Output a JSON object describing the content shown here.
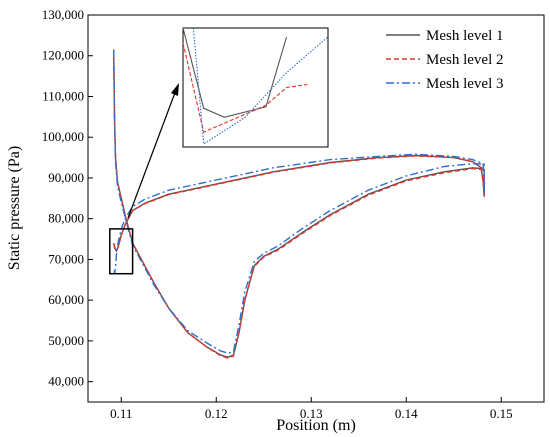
{
  "chart_data": {
    "type": "line",
    "xlabel": "Position (m)",
    "ylabel": "Static pressure (Pa)",
    "xlim": [
      0.1065,
      0.1545
    ],
    "ylim": [
      35000,
      130000
    ],
    "x_ticks": [
      0.11,
      0.12,
      0.13,
      0.14,
      0.15
    ],
    "x_tick_labels": [
      "0.11",
      "0.12",
      "0.13",
      "0.14",
      "0.15"
    ],
    "y_ticks": [
      40000,
      50000,
      60000,
      70000,
      80000,
      90000,
      100000,
      110000,
      120000,
      130000
    ],
    "y_tick_labels": [
      "40,000",
      "50,000",
      "60,000",
      "70,000",
      "80,000",
      "90,000",
      "100,000",
      "110,000",
      "120,000",
      "130,000"
    ],
    "legend_position": "top-right",
    "series": [
      {
        "name": "Mesh level 1",
        "color": "#555555",
        "dash": "solid",
        "points": [
          [
            0.1092,
            121500
          ],
          [
            0.1093,
            104000
          ],
          [
            0.1094,
            95000
          ],
          [
            0.1096,
            89000
          ],
          [
            0.11,
            85000
          ],
          [
            0.1105,
            80000
          ],
          [
            0.1112,
            74000
          ],
          [
            0.112,
            70500
          ],
          [
            0.1135,
            64000
          ],
          [
            0.115,
            58000
          ],
          [
            0.117,
            52000
          ],
          [
            0.119,
            48500
          ],
          [
            0.1205,
            46500
          ],
          [
            0.1212,
            46000
          ],
          [
            0.1218,
            46500
          ],
          [
            0.1224,
            52000
          ],
          [
            0.123,
            60000
          ],
          [
            0.124,
            68500
          ],
          [
            0.125,
            70800
          ],
          [
            0.1265,
            72500
          ],
          [
            0.129,
            76500
          ],
          [
            0.132,
            81000
          ],
          [
            0.136,
            86000
          ],
          [
            0.14,
            89500
          ],
          [
            0.144,
            91500
          ],
          [
            0.147,
            92500
          ],
          [
            0.1479,
            92300
          ],
          [
            0.1481,
            89000
          ],
          [
            0.1482,
            85500
          ],
          [
            0.1482,
            92000
          ],
          [
            0.147,
            94000
          ],
          [
            0.145,
            95000
          ],
          [
            0.141,
            95500
          ],
          [
            0.137,
            95000
          ],
          [
            0.132,
            93800
          ],
          [
            0.126,
            91500
          ],
          [
            0.12,
            88500
          ],
          [
            0.115,
            86000
          ],
          [
            0.1125,
            83800
          ],
          [
            0.1112,
            82000
          ],
          [
            0.1104,
            78500
          ],
          [
            0.11,
            76000
          ],
          [
            0.1097,
            73300
          ],
          [
            0.1095,
            72000
          ],
          [
            0.1093,
            72800
          ],
          [
            0.1092,
            74000
          ]
        ]
      },
      {
        "name": "Mesh level 2",
        "color": "#e8312a",
        "dash": "5,3",
        "points": [
          [
            0.1092,
            121500
          ],
          [
            0.1093,
            104000
          ],
          [
            0.1094,
            95000
          ],
          [
            0.1096,
            89000
          ],
          [
            0.11,
            85000
          ],
          [
            0.1105,
            80000
          ],
          [
            0.1112,
            74000
          ],
          [
            0.112,
            70500
          ],
          [
            0.1135,
            64000
          ],
          [
            0.115,
            58000
          ],
          [
            0.117,
            52000
          ],
          [
            0.119,
            48500
          ],
          [
            0.1205,
            46300
          ],
          [
            0.1212,
            45800
          ],
          [
            0.1218,
            46300
          ],
          [
            0.1224,
            52000
          ],
          [
            0.123,
            60000
          ],
          [
            0.124,
            68300
          ],
          [
            0.125,
            70600
          ],
          [
            0.1265,
            72300
          ],
          [
            0.129,
            76300
          ],
          [
            0.132,
            80800
          ],
          [
            0.136,
            85800
          ],
          [
            0.14,
            89300
          ],
          [
            0.144,
            91300
          ],
          [
            0.147,
            92300
          ],
          [
            0.1479,
            92100
          ],
          [
            0.1481,
            89000
          ],
          [
            0.1482,
            85500
          ],
          [
            0.1482,
            92000
          ],
          [
            0.147,
            94000
          ],
          [
            0.145,
            95000
          ],
          [
            0.141,
            95400
          ],
          [
            0.137,
            94900
          ],
          [
            0.132,
            93700
          ],
          [
            0.126,
            91400
          ],
          [
            0.12,
            88400
          ],
          [
            0.115,
            85900
          ],
          [
            0.1125,
            83700
          ],
          [
            0.1112,
            82000
          ],
          [
            0.1104,
            78500
          ],
          [
            0.11,
            76000
          ],
          [
            0.1097,
            73100
          ],
          [
            0.1095,
            72100
          ],
          [
            0.1093,
            73000
          ],
          [
            0.1092,
            74000
          ]
        ]
      },
      {
        "name": "Mesh level 3",
        "color": "#2f6fcf",
        "dash": "8,3,2,3",
        "points": [
          [
            0.1092,
            121500
          ],
          [
            0.1093,
            103000
          ],
          [
            0.1094,
            94000
          ],
          [
            0.1096,
            88000
          ],
          [
            0.11,
            84000
          ],
          [
            0.1105,
            79500
          ],
          [
            0.1112,
            73500
          ],
          [
            0.112,
            70000
          ],
          [
            0.1135,
            63500
          ],
          [
            0.115,
            58000
          ],
          [
            0.117,
            52500
          ],
          [
            0.119,
            49500
          ],
          [
            0.1205,
            47500
          ],
          [
            0.1212,
            47000
          ],
          [
            0.1218,
            47300
          ],
          [
            0.1224,
            54000
          ],
          [
            0.123,
            62000
          ],
          [
            0.124,
            69500
          ],
          [
            0.125,
            71500
          ],
          [
            0.1265,
            73300
          ],
          [
            0.129,
            77500
          ],
          [
            0.132,
            82000
          ],
          [
            0.136,
            87000
          ],
          [
            0.14,
            90500
          ],
          [
            0.144,
            92800
          ],
          [
            0.147,
            93500
          ],
          [
            0.1482,
            93400
          ],
          [
            0.1482,
            86000
          ],
          [
            0.1481,
            93500
          ],
          [
            0.147,
            94500
          ],
          [
            0.145,
            95300
          ],
          [
            0.141,
            95800
          ],
          [
            0.137,
            95300
          ],
          [
            0.132,
            94500
          ],
          [
            0.126,
            92500
          ],
          [
            0.12,
            89500
          ],
          [
            0.115,
            87000
          ],
          [
            0.1125,
            84800
          ],
          [
            0.1112,
            83000
          ],
          [
            0.1104,
            80000
          ],
          [
            0.11,
            77500
          ],
          [
            0.1097,
            74500
          ],
          [
            0.1095,
            71500
          ],
          [
            0.1094,
            68000
          ],
          [
            0.1093,
            66500
          ],
          [
            0.1092,
            68000
          ]
        ]
      }
    ],
    "inset": {
      "x_range": [
        0.1088,
        0.1112
      ],
      "y_range": [
        66500,
        77500
      ],
      "zoom_x": [
        0.1094,
        0.1101
      ],
      "zoom_y": [
        71500,
        75500
      ],
      "series_points": [
        [
          [
            0.1094,
            75500
          ],
          [
            0.1095,
            72800
          ],
          [
            0.1096,
            72500
          ],
          [
            0.1098,
            72850
          ],
          [
            0.1099,
            75200
          ]
        ],
        [
          [
            0.1094,
            75000
          ],
          [
            0.1095,
            72000
          ],
          [
            0.1097,
            72600
          ],
          [
            0.1098,
            72900
          ],
          [
            0.1099,
            73500
          ],
          [
            0.11,
            73600
          ]
        ],
        [
          [
            0.10945,
            75500
          ],
          [
            0.1095,
            71600
          ],
          [
            0.1097,
            72500
          ],
          [
            0.1099,
            74000
          ],
          [
            0.1101,
            75200
          ]
        ]
      ]
    }
  }
}
